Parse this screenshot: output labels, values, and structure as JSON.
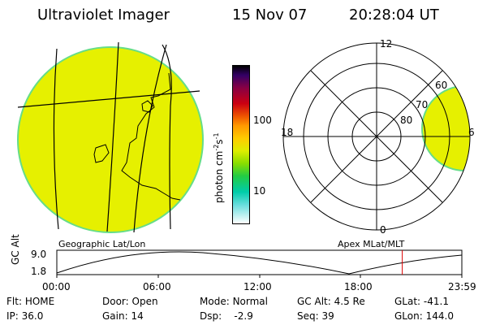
{
  "header": {
    "title": "Ultraviolet Imager",
    "date": "15 Nov 07",
    "time": "20:28:04 UT"
  },
  "colorbar": {
    "label": "photon cm",
    "label_sup1": "-2",
    "label_mid": "s",
    "label_sup2": "-1",
    "ticks": [
      "100",
      "10"
    ]
  },
  "polar": {
    "ring_labels": [
      "60",
      "70",
      "80"
    ],
    "clock_labels": {
      "top": "12",
      "left": "18",
      "right": "6",
      "bottom": "0"
    }
  },
  "map_labels": {
    "left": "Geographic Lat/Lon",
    "right": "Apex MLat/MLT"
  },
  "altitude_plot": {
    "ylabel": "GC Alt",
    "yticks": [
      "9.0",
      "1.8"
    ],
    "xticks": [
      "00:00",
      "06:00",
      "12:00",
      "18:00",
      "23:59"
    ],
    "marker_time_hours": 20.47
  },
  "status": {
    "row1": [
      {
        "label": "Flt:",
        "value": "HOME"
      },
      {
        "label": "Door:",
        "value": "Open"
      },
      {
        "label": "Mode:",
        "value": "Normal"
      },
      {
        "label": "GC Alt:",
        "value": "4.5 Re"
      },
      {
        "label": "GLat:",
        "value": "-41.1"
      }
    ],
    "row2": [
      {
        "label": "IP:",
        "value": "36.0"
      },
      {
        "label": "Gain:",
        "value": "14"
      },
      {
        "label": "Dsp:",
        "value": "-2.9"
      },
      {
        "label": "Seq:",
        "value": "39"
      },
      {
        "label": "GLon:",
        "value": "144.0"
      }
    ]
  },
  "colors": {
    "fill": "#e6f000",
    "edge": "#66dd88",
    "marker": "#dd0000"
  }
}
